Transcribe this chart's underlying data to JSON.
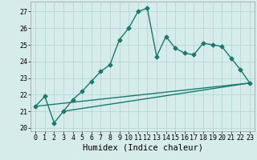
{
  "title": "",
  "xlabel": "Humidex (Indice chaleur)",
  "ylabel": "",
  "xlim": [
    -0.5,
    23.5
  ],
  "ylim": [
    19.8,
    27.6
  ],
  "yticks": [
    20,
    21,
    22,
    23,
    24,
    25,
    26,
    27
  ],
  "xticks": [
    0,
    1,
    2,
    3,
    4,
    5,
    6,
    7,
    8,
    9,
    10,
    11,
    12,
    13,
    14,
    15,
    16,
    17,
    18,
    19,
    20,
    21,
    22,
    23
  ],
  "background_color": "#d5ecea",
  "grid_color": "#b0d4d0",
  "line_color": "#1a7a6e",
  "line1_x": [
    0,
    1,
    2,
    3,
    4,
    5,
    6,
    7,
    8,
    9,
    10,
    11,
    12,
    13,
    14,
    15,
    16,
    17,
    18,
    19,
    20,
    21,
    22,
    23
  ],
  "line1_y": [
    21.3,
    21.9,
    20.3,
    21.0,
    21.7,
    22.2,
    22.8,
    23.4,
    23.8,
    25.3,
    26.0,
    27.0,
    27.2,
    24.3,
    25.5,
    24.8,
    24.5,
    24.4,
    25.1,
    25.0,
    24.9,
    24.2,
    23.5,
    22.7
  ],
  "line2_x": [
    0,
    23
  ],
  "line2_y": [
    21.3,
    22.7
  ],
  "line3_x": [
    3,
    23
  ],
  "line3_y": [
    21.0,
    22.7
  ],
  "marker": "D",
  "marker_size": 2.5,
  "line_width": 1.0,
  "tick_fontsize": 6.0,
  "xlabel_fontsize": 7.5
}
